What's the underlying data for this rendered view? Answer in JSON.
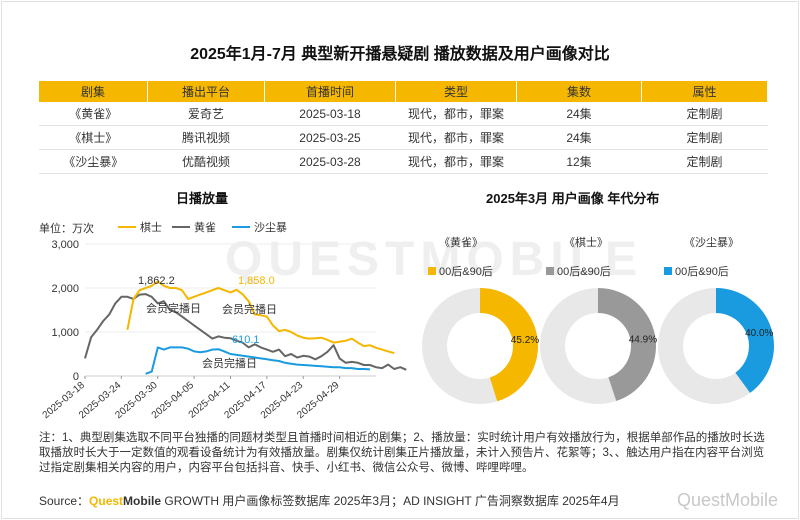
{
  "title": "2025年1月-7月 典型新开播悬疑剧 播放数据及用户画像对比",
  "table": {
    "headers": [
      "剧集",
      "播出平台",
      "首播时间",
      "类型",
      "集数",
      "属性"
    ],
    "rows": [
      [
        "《黄雀》",
        "爱奇艺",
        "2025-03-18",
        "现代，都市，罪案",
        "24集",
        "定制剧"
      ],
      [
        "《棋士》",
        "腾讯视频",
        "2025-03-25",
        "现代，都市，罪案",
        "24集",
        "定制剧"
      ],
      [
        "《沙尘暴》",
        "优酷视频",
        "2025-03-28",
        "现代，都市，罪案",
        "12集",
        "定制剧"
      ]
    ]
  },
  "left_title": "日播放量",
  "right_title": "2025年3月 用户画像 年代分布",
  "unit": "单位：万次",
  "watermark": "QUESTMOBILE",
  "corner_watermark": "QuestMobile",
  "colors": {
    "qishi": "#f5b700",
    "huangque": "#666666",
    "shachenbao": "#1a9be0",
    "pie_rest": "#e8e8e8"
  },
  "chart_data": [
    {
      "type": "line",
      "title": "日播放量",
      "ylabel": "单位：万次",
      "ylim": [
        0,
        3000
      ],
      "yticks": [
        0,
        1000,
        2000,
        3000
      ],
      "ytick_labels": [
        "0",
        "1,000",
        "2,000",
        "3,000"
      ],
      "xticks": [
        "2025-03-18",
        "2025-03-24",
        "2025-03-30",
        "2025-04-05",
        "2025-04-11",
        "2025-04-17",
        "2025-04-23",
        "2025-04-29"
      ],
      "x_start": "2025-03-18",
      "series": [
        {
          "name": "棋士",
          "color": "#f5b700",
          "start": "2025-03-25",
          "values": [
            1050,
            1750,
            1950,
            2000,
            2050,
            2150,
            2050,
            2000,
            2000,
            1950,
            1750,
            1800,
            1850,
            1900,
            1950,
            2000,
            1950,
            1900,
            1958,
            1858,
            1700,
            1400,
            1380,
            1350,
            1150,
            1020,
            1050,
            1000,
            920,
            870,
            850,
            860,
            870,
            820,
            760,
            780,
            800,
            850,
            760,
            680,
            700,
            640,
            600,
            560,
            520
          ]
        },
        {
          "name": "黄雀",
          "color": "#666666",
          "start": "2025-03-18",
          "values": [
            400,
            880,
            1050,
            1250,
            1400,
            1650,
            1800,
            1800,
            1750,
            1850,
            1862,
            1800,
            1650,
            1700,
            1500,
            1450,
            1350,
            1250,
            1150,
            1050,
            950,
            850,
            900,
            870,
            860,
            800,
            760,
            650,
            720,
            650,
            600,
            550,
            600,
            450,
            500,
            420,
            460,
            440,
            380,
            450,
            550,
            700,
            400,
            300,
            320,
            300,
            250,
            250,
            200,
            180,
            260,
            160,
            200,
            140
          ]
        },
        {
          "name": "沙尘暴",
          "color": "#1a9be0",
          "start": "2025-03-28",
          "values": [
            50,
            100,
            650,
            600,
            650,
            650,
            650,
            620,
            560,
            540,
            560,
            600,
            610,
            560,
            500,
            480,
            460,
            440,
            420,
            400,
            380,
            360,
            340,
            300,
            280,
            260,
            250,
            240,
            230,
            220,
            210,
            200,
            200,
            180,
            180,
            160,
            160,
            150
          ]
        }
      ],
      "annotations": [
        {
          "text": "1,862.2",
          "color": "#333333"
        },
        {
          "text": "1,858.0",
          "color": "#f5b700"
        },
        {
          "text": "610.1",
          "color": "#1a9be0"
        },
        {
          "text": "会员完播日",
          "color": "#333333"
        },
        {
          "text": "会员完播日",
          "color": "#333333"
        },
        {
          "text": "会员完播日",
          "color": "#333333"
        }
      ]
    },
    {
      "type": "pie",
      "title": "《黄雀》",
      "legend": "00后&90后",
      "value": 45.2,
      "label": "45.2%",
      "color": "#f5b700"
    },
    {
      "type": "pie",
      "title": "《棋士》",
      "legend": "00后&90后",
      "value": 44.9,
      "label": "44.9%",
      "color": "#999999"
    },
    {
      "type": "pie",
      "title": "《沙尘暴》",
      "legend": "00后&90后",
      "value": 40.0,
      "label": "40.0%",
      "color": "#1a9be0"
    }
  ],
  "note": "注：1、典型剧集选取不同平台独播的同题材类型且首播时间相近的剧集；2、播放量：实时统计用户有效播放行为，根据单部作品的播放时长选取播放时长大于一定数值的观看设备统计为有效播放量。剧集仅统计剧集正片播放量，未计入预告片、花絮等；3、、触达用户指在内容平台浏览过指定剧集相关内容的用户，内容平台包括抖音、快手、小红书、微信公众号、微博、哔哩哔哩。",
  "source": {
    "prefix": "Source：",
    "brand1": "Quest",
    "brand2": "Mobile",
    "rest": " GROWTH 用户画像标签数据库 2025年3月；AD INSIGHT 广告洞察数据库 2025年4月"
  }
}
